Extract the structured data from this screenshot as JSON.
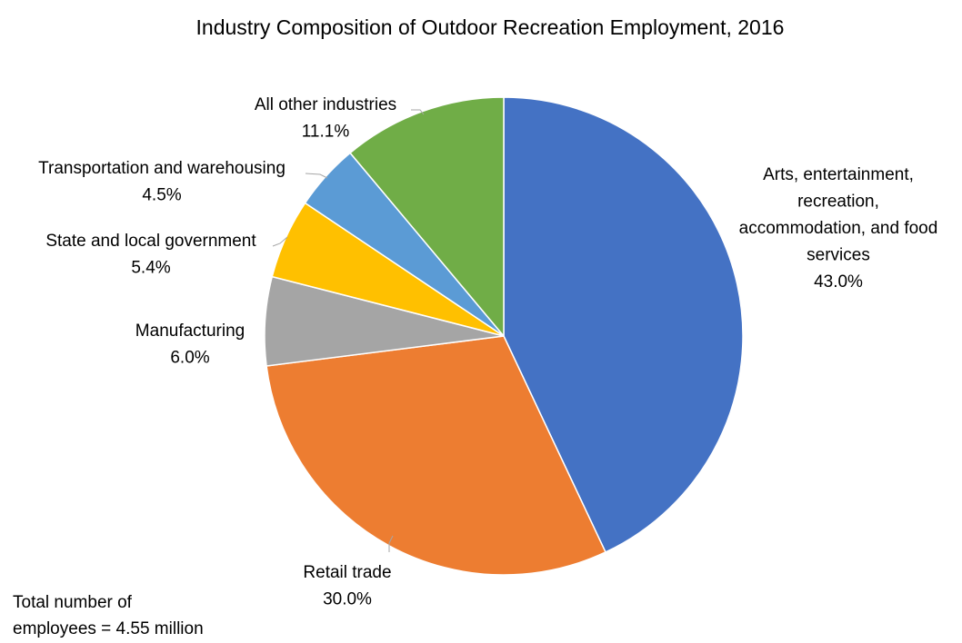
{
  "chart_data": {
    "type": "pie",
    "title": "Industry Composition of Outdoor Recreation Employment, 2016",
    "slices": [
      {
        "label": [
          "Arts, entertainment,",
          "recreation,",
          "accommodation, and food",
          "services"
        ],
        "value": 43.0,
        "value_label": "43.0%",
        "color": "#4472C4"
      },
      {
        "label": [
          "Retail trade"
        ],
        "value": 30.0,
        "value_label": "30.0%",
        "color": "#ED7D31"
      },
      {
        "label": [
          "Manufacturing"
        ],
        "value": 6.0,
        "value_label": "6.0%",
        "color": "#A5A5A5"
      },
      {
        "label": [
          "State and local government"
        ],
        "value": 5.4,
        "value_label": "5.4%",
        "color": "#FFC000"
      },
      {
        "label": [
          "Transportation and warehousing"
        ],
        "value": 4.5,
        "value_label": "4.5%",
        "color": "#5B9BD5"
      },
      {
        "label": [
          "All other industries"
        ],
        "value": 11.1,
        "value_label": "11.1%",
        "color": "#70AD47"
      }
    ],
    "note": [
      "Total number of",
      "employees = 4.55 million"
    ]
  }
}
